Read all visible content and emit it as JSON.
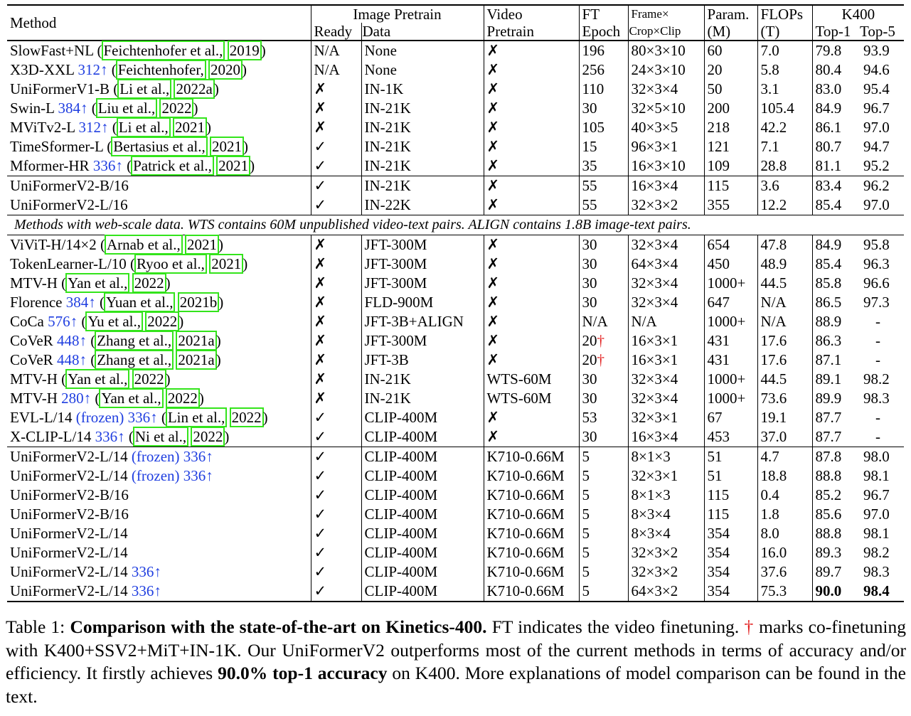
{
  "header": {
    "method": "Method",
    "image_pretrain": "Image Pretrain",
    "ready": "Ready",
    "data": "Data",
    "video": "Video",
    "pretrain": "Pretrain",
    "ft": "FT",
    "epoch": "Epoch",
    "frame_line1": "Frame×",
    "frame_line2": "Crop×Clip",
    "param_line1": "Param.",
    "param_line2": "(M)",
    "flops_line1": "FLOPs",
    "flops_line2": "(T)",
    "k400": "K400",
    "top1": "Top-1",
    "top5": "Top-5"
  },
  "groups": [
    {
      "rows": [
        {
          "name": "SlowFast+NL",
          "res": "",
          "frozen": "",
          "cite": [
            "Feichtenhofer et al.,",
            "2019"
          ],
          "ready": "N/A",
          "data": "None",
          "video": "✗",
          "epoch": "196",
          "dagger": false,
          "frames": "80×3×10",
          "param": "60",
          "flops": "7.0",
          "top1": "79.8",
          "top5": "93.9"
        },
        {
          "name": "X3D-XXL",
          "res": "312↑",
          "frozen": "",
          "cite": [
            "Feichtenhofer,",
            "2020"
          ],
          "ready": "N/A",
          "data": "None",
          "video": "✗",
          "epoch": "256",
          "dagger": false,
          "frames": "24×3×10",
          "param": "20",
          "flops": "5.8",
          "top1": "80.4",
          "top5": "94.6"
        },
        {
          "name": "UniFormerV1-B",
          "res": "",
          "frozen": "",
          "cite": [
            "Li et al.,",
            "2022a"
          ],
          "ready": "✗",
          "data": "IN-1K",
          "video": "✗",
          "epoch": "110",
          "dagger": false,
          "frames": "32×3×4",
          "param": "50",
          "flops": "3.1",
          "top1": "83.0",
          "top5": "95.4"
        },
        {
          "name": "Swin-L",
          "res": "384↑",
          "frozen": "",
          "cite": [
            "Liu et al.,",
            "2022"
          ],
          "ready": "✗",
          "data": "IN-21K",
          "video": "✗",
          "epoch": "30",
          "dagger": false,
          "frames": "32×5×10",
          "param": "200",
          "flops": "105.4",
          "top1": "84.9",
          "top5": "96.7"
        },
        {
          "name": "MViTv2-L",
          "res": "312↑",
          "frozen": "",
          "cite": [
            "Li et al.,",
            "2021"
          ],
          "ready": "✗",
          "data": "IN-21K",
          "video": "✗",
          "epoch": "105",
          "dagger": false,
          "frames": "40×3×5",
          "param": "218",
          "flops": "42.2",
          "top1": "86.1",
          "top5": "97.0"
        },
        {
          "name": "TimeSformer-L",
          "res": "",
          "frozen": "",
          "cite": [
            "Bertasius et al.,",
            "2021"
          ],
          "ready": "✓",
          "data": "IN-21K",
          "video": "✗",
          "epoch": "15",
          "dagger": false,
          "frames": "96×3×1",
          "param": "121",
          "flops": "7.1",
          "top1": "80.7",
          "top5": "94.7"
        },
        {
          "name": "Mformer-HR",
          "res": "336↑",
          "frozen": "",
          "cite": [
            "Patrick et al.,",
            "2021"
          ],
          "ready": "✓",
          "data": "IN-21K",
          "video": "✗",
          "epoch": "35",
          "dagger": false,
          "frames": "16×3×10",
          "param": "109",
          "flops": "28.8",
          "top1": "81.1",
          "top5": "95.2"
        }
      ]
    },
    {
      "rows": [
        {
          "name": "UniFormerV2-B/16",
          "res": "",
          "frozen": "",
          "cite": null,
          "ready": "✓",
          "data": "IN-21K",
          "video": "✗",
          "epoch": "55",
          "dagger": false,
          "frames": "16×3×4",
          "param": "115",
          "flops": "3.6",
          "top1": "83.4",
          "top5": "96.2"
        },
        {
          "name": "UniFormerV2-L/16",
          "res": "",
          "frozen": "",
          "cite": null,
          "ready": "✓",
          "data": "IN-22K",
          "video": "✗",
          "epoch": "55",
          "dagger": false,
          "frames": "32×3×2",
          "param": "355",
          "flops": "12.2",
          "top1": "85.4",
          "top5": "97.0"
        }
      ]
    },
    {
      "note": "Methods with web-scale data. WTS contains 60M unpublished video-text pairs. ALIGN contains 1.8B image-text pairs.",
      "rows": [
        {
          "name": "ViViT-H/14×2",
          "res": "",
          "frozen": "",
          "cite": [
            "Arnab et al.,",
            "2021"
          ],
          "ready": "✗",
          "data": "JFT-300M",
          "video": "✗",
          "epoch": "30",
          "dagger": false,
          "frames": "32×3×4",
          "param": "654",
          "flops": "47.8",
          "top1": "84.9",
          "top5": "95.8"
        },
        {
          "name": "TokenLearner-L/10",
          "res": "",
          "frozen": "",
          "cite": [
            "Ryoo et al.,",
            "2021"
          ],
          "ready": "✗",
          "data": "JFT-300M",
          "video": "✗",
          "epoch": "30",
          "dagger": false,
          "frames": "64×3×4",
          "param": "450",
          "flops": "48.9",
          "top1": "85.4",
          "top5": "96.3"
        },
        {
          "name": "MTV-H",
          "res": "",
          "frozen": "",
          "cite": [
            "Yan et al.,",
            "2022"
          ],
          "ready": "✗",
          "data": "JFT-300M",
          "video": "✗",
          "epoch": "30",
          "dagger": false,
          "frames": "32×3×4",
          "param": "1000+",
          "flops": "44.5",
          "top1": "85.8",
          "top5": "96.6"
        },
        {
          "name": "Florence",
          "res": "384↑",
          "frozen": "",
          "cite": [
            "Yuan et al.,",
            "2021b"
          ],
          "ready": "✗",
          "data": "FLD-900M",
          "video": "✗",
          "epoch": "30",
          "dagger": false,
          "frames": "32×3×4",
          "param": "647",
          "flops": "N/A",
          "top1": "86.5",
          "top5": "97.3"
        },
        {
          "name": "CoCa",
          "res": "576↑",
          "frozen": "",
          "cite": [
            "Yu et al.,",
            "2022"
          ],
          "ready": "✗",
          "data": "JFT-3B+ALIGN",
          "video": "✗",
          "epoch": "N/A",
          "dagger": false,
          "frames": "N/A",
          "param": "1000+",
          "flops": "N/A",
          "top1": "88.9",
          "top5": "-"
        },
        {
          "name": "CoVeR",
          "res": "448↑",
          "frozen": "",
          "cite": [
            "Zhang et al.,",
            "2021a"
          ],
          "ready": "✗",
          "data": "JFT-300M",
          "video": "✗",
          "epoch": "20",
          "dagger": true,
          "frames": "16×3×1",
          "param": "431",
          "flops": "17.6",
          "top1": "86.3",
          "top5": "-"
        },
        {
          "name": "CoVeR",
          "res": "448↑",
          "frozen": "",
          "cite": [
            "Zhang et al.,",
            "2021a"
          ],
          "ready": "✗",
          "data": "JFT-3B",
          "video": "✗",
          "epoch": "20",
          "dagger": true,
          "frames": "16×3×1",
          "param": "431",
          "flops": "17.6",
          "top1": "87.1",
          "top5": "-"
        },
        {
          "name": "MTV-H",
          "res": "",
          "frozen": "",
          "cite": [
            "Yan et al.,",
            "2022"
          ],
          "ready": "✗",
          "data": "IN-21K",
          "video": "WTS-60M",
          "epoch": "30",
          "dagger": false,
          "frames": "32×3×4",
          "param": "1000+",
          "flops": "44.5",
          "top1": "89.1",
          "top5": "98.2"
        },
        {
          "name": "MTV-H",
          "res": "280↑",
          "frozen": "",
          "cite": [
            "Yan et al.,",
            "2022"
          ],
          "ready": "✗",
          "data": "IN-21K",
          "video": "WTS-60M",
          "epoch": "30",
          "dagger": false,
          "frames": "32×3×4",
          "param": "1000+",
          "flops": "73.6",
          "top1": "89.9",
          "top5": "98.3"
        },
        {
          "name": "EVL-L/14",
          "res": "336↑",
          "frozen": "(frozen)",
          "cite": [
            "Lin et al.,",
            "2022"
          ],
          "ready": "✓",
          "data": "CLIP-400M",
          "video": "✗",
          "epoch": "53",
          "dagger": false,
          "frames": "32×3×1",
          "param": "67",
          "flops": "19.1",
          "top1": "87.7",
          "top5": "-"
        },
        {
          "name": "X-CLIP-L/14",
          "res": "336↑",
          "frozen": "",
          "cite": [
            "Ni et al.,",
            "2022"
          ],
          "ready": "✓",
          "data": "CLIP-400M",
          "video": "✗",
          "epoch": "30",
          "dagger": false,
          "frames": "16×3×4",
          "param": "453",
          "flops": "37.0",
          "top1": "87.7",
          "top5": "-"
        }
      ]
    },
    {
      "rows": [
        {
          "name": "UniFormerV2-L/14",
          "res": "336↑",
          "frozen": "(frozen)",
          "cite": null,
          "ready": "✓",
          "data": "CLIP-400M",
          "video": "K710-0.66M",
          "epoch": "5",
          "dagger": false,
          "frames": "8×1×3",
          "param": "51",
          "flops": "4.7",
          "top1": "87.8",
          "top5": "98.0"
        },
        {
          "name": "UniFormerV2-L/14",
          "res": "336↑",
          "frozen": "(frozen)",
          "cite": null,
          "ready": "✓",
          "data": "CLIP-400M",
          "video": "K710-0.66M",
          "epoch": "5",
          "dagger": false,
          "frames": "32×3×1",
          "param": "51",
          "flops": "18.8",
          "top1": "88.8",
          "top5": "98.1"
        },
        {
          "name": "UniFormerV2-B/16",
          "res": "",
          "frozen": "",
          "cite": null,
          "ready": "✓",
          "data": "CLIP-400M",
          "video": "K710-0.66M",
          "epoch": "5",
          "dagger": false,
          "frames": "8×1×3",
          "param": "115",
          "flops": "0.4",
          "top1": "85.2",
          "top5": "96.7"
        },
        {
          "name": "UniFormerV2-B/16",
          "res": "",
          "frozen": "",
          "cite": null,
          "ready": "✓",
          "data": "CLIP-400M",
          "video": "K710-0.66M",
          "epoch": "5",
          "dagger": false,
          "frames": "8×3×4",
          "param": "115",
          "flops": "1.8",
          "top1": "85.6",
          "top5": "97.0"
        },
        {
          "name": "UniFormerV2-L/14",
          "res": "",
          "frozen": "",
          "cite": null,
          "ready": "✓",
          "data": "CLIP-400M",
          "video": "K710-0.66M",
          "epoch": "5",
          "dagger": false,
          "frames": "8×3×4",
          "param": "354",
          "flops": "8.0",
          "top1": "88.8",
          "top5": "98.1"
        },
        {
          "name": "UniFormerV2-L/14",
          "res": "",
          "frozen": "",
          "cite": null,
          "ready": "✓",
          "data": "CLIP-400M",
          "video": "K710-0.66M",
          "epoch": "5",
          "dagger": false,
          "frames": "32×3×2",
          "param": "354",
          "flops": "16.0",
          "top1": "89.3",
          "top5": "98.2"
        },
        {
          "name": "UniFormerV2-L/14",
          "res": "336↑",
          "frozen": "",
          "cite": null,
          "ready": "✓",
          "data": "CLIP-400M",
          "video": "K710-0.66M",
          "epoch": "5",
          "dagger": false,
          "frames": "32×3×2",
          "param": "354",
          "flops": "37.6",
          "top1": "89.7",
          "top5": "98.3"
        },
        {
          "name": "UniFormerV2-L/14",
          "res": "336↑",
          "frozen": "",
          "cite": null,
          "ready": "✓",
          "data": "CLIP-400M",
          "video": "K710-0.66M",
          "epoch": "5",
          "dagger": false,
          "frames": "64×3×2",
          "param": "354",
          "flops": "75.3",
          "top1": "90.0",
          "top5": "98.4",
          "best": true
        }
      ]
    }
  ],
  "dagger_symbol": "†",
  "caption": {
    "label": "Table 1: ",
    "title": "Comparison with the state-of-the-art on Kinetics-400.",
    "text1": " FT indicates the video finetuning. ",
    "dagger": "†",
    "text2": " marks co-finetuning with K400+SSV2+MiT+IN-1K. Our UniFormerV2 outperforms most of the current methods in terms of accuracy and/or efficiency. It firstly achieves ",
    "bold2": "90.0% top-1 accuracy",
    "text3": " on K400. More explanations of model comparison can be found in the text."
  },
  "colors": {
    "citation_box": "#33e41b",
    "blue_text": "#1f3ee0",
    "dagger_red": "#e21d1d"
  }
}
